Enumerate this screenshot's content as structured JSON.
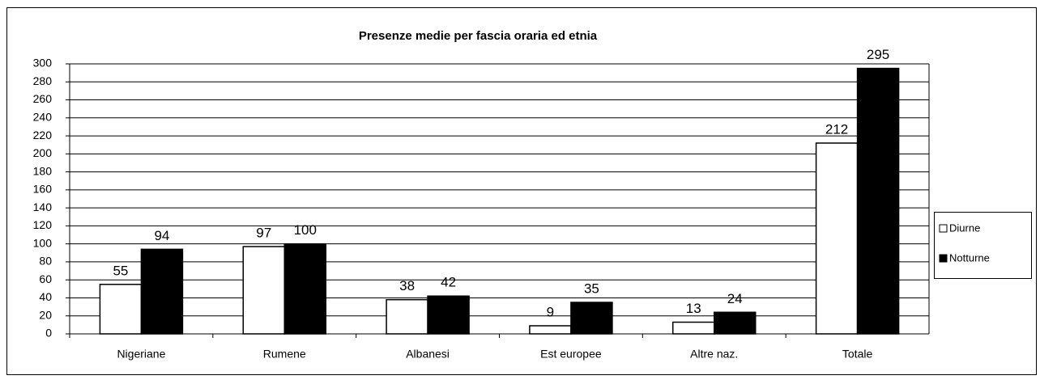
{
  "chart_data": {
    "type": "bar",
    "title": "Presenze medie per fascia oraria ed etnia",
    "categories": [
      "Nigeriane",
      "Rumene",
      "Albanesi",
      "Est europee",
      "Altre naz.",
      "Totale"
    ],
    "series": [
      {
        "name": "Diurne",
        "color": "#ffffff",
        "values": [
          55,
          97,
          38,
          9,
          13,
          212
        ]
      },
      {
        "name": "Notturne",
        "color": "#000000",
        "values": [
          94,
          100,
          42,
          35,
          24,
          295
        ]
      }
    ],
    "ylim": [
      0,
      300
    ],
    "yticks": [
      0,
      20,
      40,
      60,
      80,
      100,
      120,
      140,
      160,
      180,
      200,
      220,
      240,
      260,
      280,
      300
    ],
    "grid": true,
    "legend": "right"
  }
}
